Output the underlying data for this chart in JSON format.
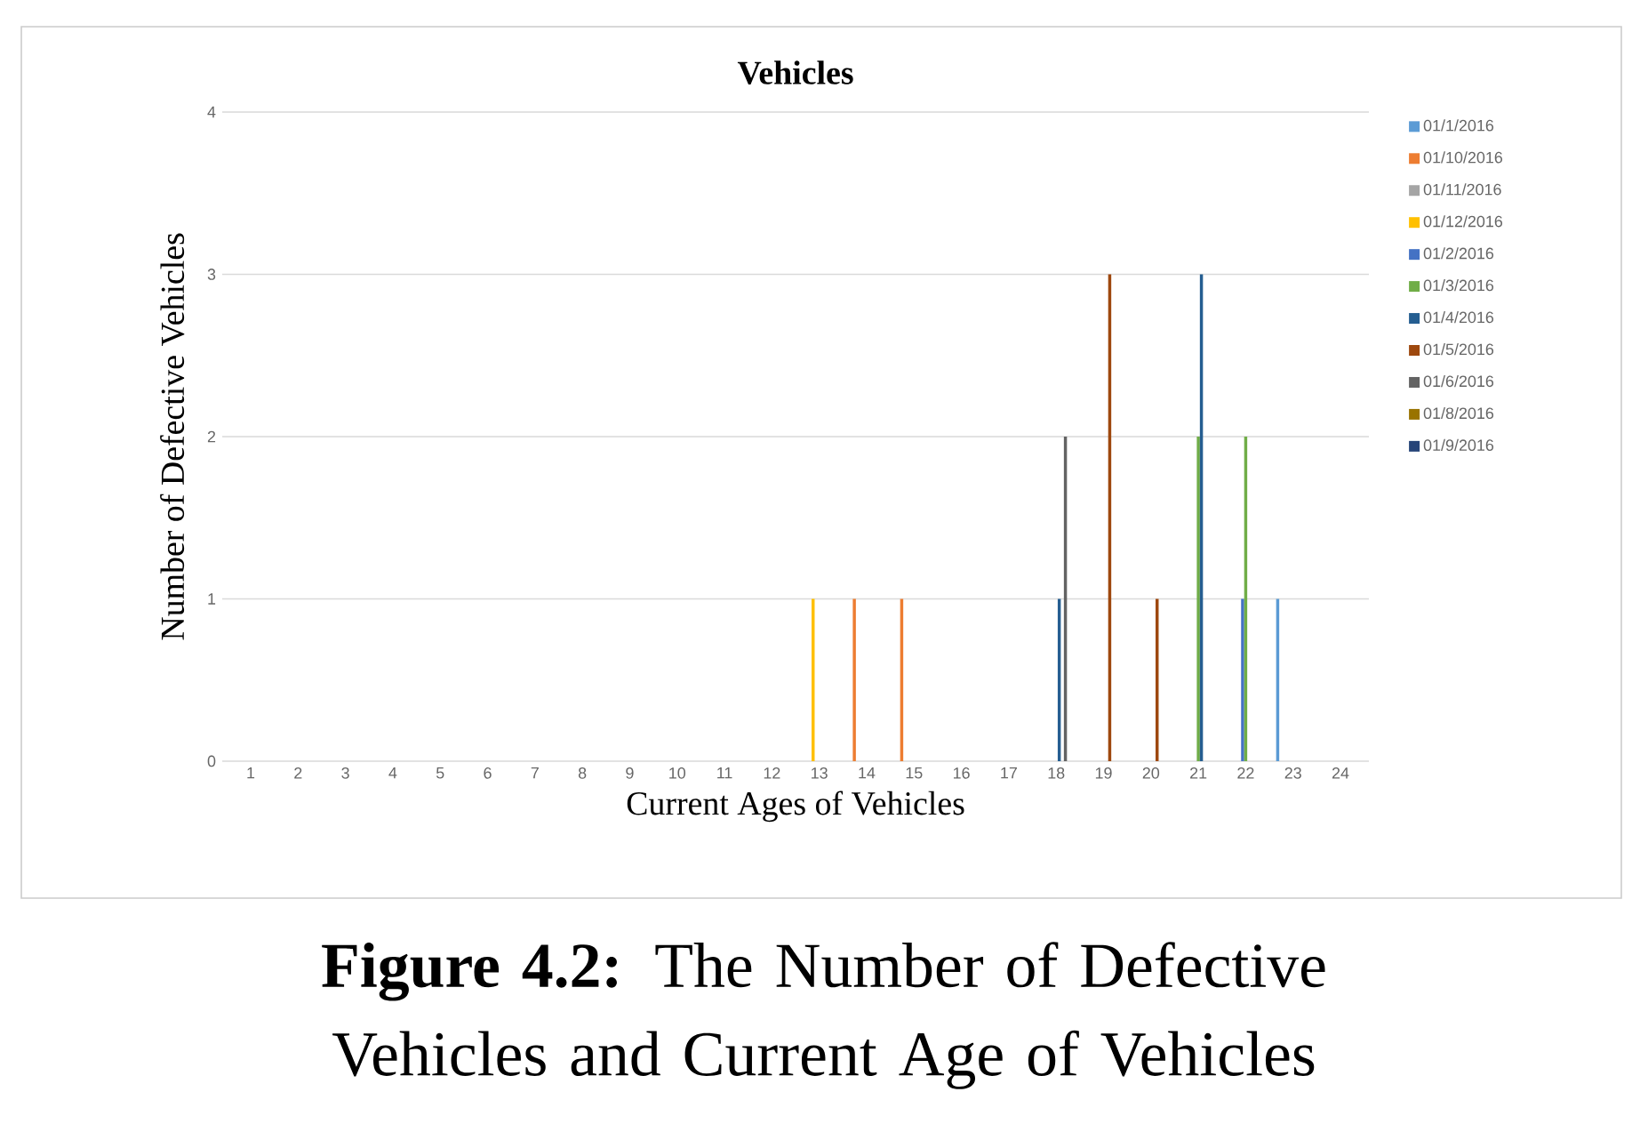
{
  "chart_data": {
    "type": "bar",
    "title": "Vehicles",
    "xlabel": "Current Ages of Vehicles",
    "ylabel": "Number of Defective Vehicles",
    "categories": [
      "1",
      "2",
      "3",
      "4",
      "5",
      "6",
      "7",
      "8",
      "9",
      "10",
      "11",
      "12",
      "13",
      "14",
      "15",
      "16",
      "17",
      "18",
      "19",
      "20",
      "21",
      "22",
      "23",
      "24"
    ],
    "series": [
      {
        "name": "01/1/2016",
        "color": "#5b9bd5",
        "values": [
          null,
          null,
          null,
          null,
          null,
          null,
          null,
          null,
          null,
          null,
          null,
          null,
          null,
          null,
          null,
          null,
          null,
          null,
          null,
          null,
          null,
          null,
          1,
          null
        ]
      },
      {
        "name": "01/10/2016",
        "color": "#ed7d31",
        "values": [
          null,
          null,
          null,
          null,
          null,
          null,
          null,
          null,
          null,
          null,
          null,
          null,
          null,
          1,
          1,
          null,
          null,
          null,
          null,
          null,
          null,
          null,
          null,
          null
        ]
      },
      {
        "name": "01/11/2016",
        "color": "#a5a5a5",
        "values": [
          null,
          null,
          null,
          null,
          null,
          null,
          null,
          null,
          null,
          null,
          null,
          null,
          null,
          null,
          null,
          null,
          null,
          null,
          null,
          null,
          null,
          null,
          null,
          null
        ]
      },
      {
        "name": "01/12/2016",
        "color": "#ffc000",
        "values": [
          null,
          null,
          null,
          null,
          null,
          null,
          null,
          null,
          null,
          null,
          null,
          null,
          1,
          null,
          null,
          null,
          null,
          null,
          null,
          null,
          null,
          null,
          null,
          null
        ]
      },
      {
        "name": "01/2/2016",
        "color": "#4472c4",
        "values": [
          null,
          null,
          null,
          null,
          null,
          null,
          null,
          null,
          null,
          null,
          null,
          null,
          null,
          null,
          null,
          null,
          null,
          null,
          null,
          null,
          null,
          1,
          null,
          null
        ]
      },
      {
        "name": "01/3/2016",
        "color": "#70ad47",
        "values": [
          null,
          null,
          null,
          null,
          null,
          null,
          null,
          null,
          null,
          null,
          null,
          null,
          null,
          null,
          null,
          null,
          null,
          null,
          null,
          null,
          2,
          2,
          null,
          null
        ]
      },
      {
        "name": "01/4/2016",
        "color": "#255e91",
        "values": [
          null,
          null,
          null,
          null,
          null,
          null,
          null,
          null,
          null,
          null,
          null,
          null,
          null,
          null,
          null,
          null,
          null,
          1,
          null,
          null,
          3,
          null,
          null,
          null
        ]
      },
      {
        "name": "01/5/2016",
        "color": "#9e480e",
        "values": [
          null,
          null,
          null,
          null,
          null,
          null,
          null,
          null,
          null,
          null,
          null,
          null,
          null,
          null,
          null,
          null,
          null,
          null,
          3,
          1,
          null,
          null,
          null,
          null
        ]
      },
      {
        "name": "01/6/2016",
        "color": "#636363",
        "values": [
          null,
          null,
          null,
          null,
          null,
          null,
          null,
          null,
          null,
          null,
          null,
          null,
          null,
          null,
          null,
          null,
          null,
          2,
          null,
          null,
          null,
          null,
          null,
          null
        ]
      },
      {
        "name": "01/8/2016",
        "color": "#997300",
        "values": [
          null,
          null,
          null,
          null,
          null,
          null,
          null,
          null,
          null,
          null,
          null,
          null,
          null,
          null,
          null,
          null,
          null,
          null,
          null,
          null,
          null,
          null,
          null,
          null
        ]
      },
      {
        "name": "01/9/2016",
        "color": "#264478",
        "values": [
          null,
          null,
          null,
          null,
          null,
          null,
          null,
          null,
          null,
          null,
          null,
          null,
          null,
          null,
          null,
          null,
          null,
          null,
          null,
          null,
          null,
          null,
          null,
          null
        ]
      }
    ],
    "ylim": [
      0,
      4
    ],
    "yticks": [
      0,
      1,
      2,
      3,
      4
    ],
    "grid": "y",
    "legend": "right",
    "annotations": [
      "**Figure 4.2:** The Number of Defective Vehicles and Current Age of Vehicles"
    ]
  }
}
